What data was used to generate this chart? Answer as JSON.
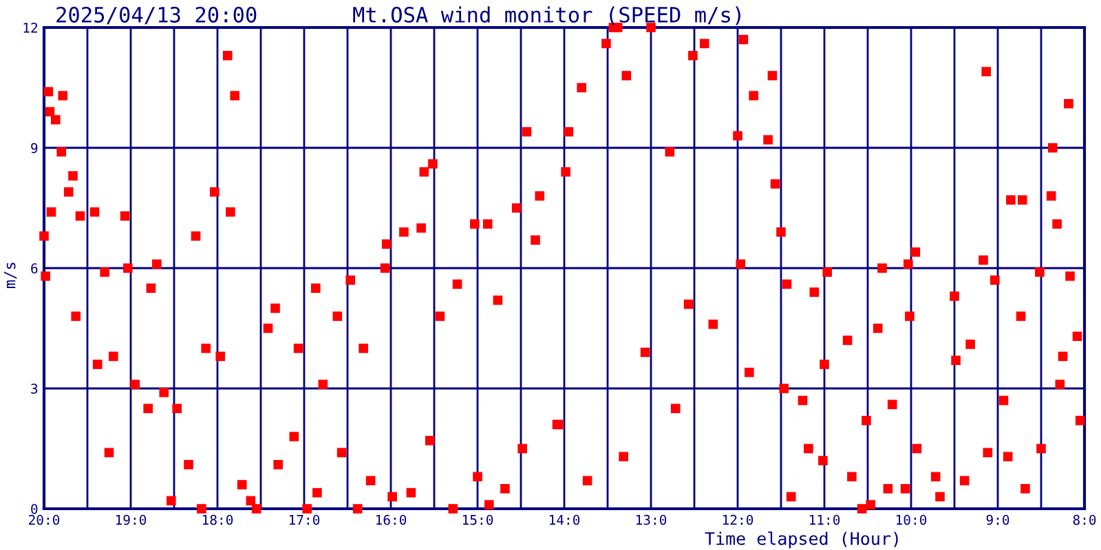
{
  "chart_data": {
    "type": "scatter",
    "title": "Mt.OSA wind monitor (SPEED m/s)",
    "subtitle": "2025/04/13 20:00",
    "xlabel": "Time elapsed (Hour)",
    "ylabel": "m/s",
    "xlim": [
      "2025-04-13T20:00",
      "2025-04-13T08:00"
    ],
    "ylim": [
      0,
      12
    ],
    "xticks": [
      {
        "value": "2025-04-13T20:00",
        "label": "20:0"
      },
      {
        "value": "2025-04-13T19:30",
        "label": null
      },
      {
        "value": "2025-04-13T19:00",
        "label": "19:0"
      },
      {
        "value": "2025-04-13T18:30",
        "label": null
      },
      {
        "value": "2025-04-13T18:00",
        "label": "18:0"
      },
      {
        "value": "2025-04-13T17:30",
        "label": null
      },
      {
        "value": "2025-04-13T17:00",
        "label": "17:0"
      },
      {
        "value": "2025-04-13T16:30",
        "label": null
      },
      {
        "value": "2025-04-13T16:00",
        "label": "16:0"
      },
      {
        "value": "2025-04-13T15:30",
        "label": null
      },
      {
        "value": "2025-04-13T15:00",
        "label": "15:0"
      },
      {
        "value": "2025-04-13T14:30",
        "label": null
      },
      {
        "value": "2025-04-13T14:00",
        "label": "14:0"
      },
      {
        "value": "2025-04-13T13:30",
        "label": null
      },
      {
        "value": "2025-04-13T13:00",
        "label": "13:0"
      },
      {
        "value": "2025-04-13T12:30",
        "label": null
      },
      {
        "value": "2025-04-13T12:00",
        "label": "12:0"
      },
      {
        "value": "2025-04-13T11:30",
        "label": null
      },
      {
        "value": "2025-04-13T11:00",
        "label": "11:0"
      },
      {
        "value": "2025-04-13T10:30",
        "label": null
      },
      {
        "value": "2025-04-13T10:00",
        "label": "10:0"
      },
      {
        "value": "2025-04-13T09:30",
        "label": null
      },
      {
        "value": "2025-04-13T09:00",
        "label": "9:0"
      },
      {
        "value": "2025-04-13T08:30",
        "label": null
      },
      {
        "value": "2025-04-13T08:00",
        "label": "8:0"
      }
    ],
    "yticks": [
      0,
      3,
      6,
      9,
      12
    ],
    "grid": true,
    "marker": "square",
    "series": [
      {
        "color": "#ff0000",
        "x": [
          "2025-04-13T19:57",
          "2025-04-13T19:56",
          "2025-04-13T19:52",
          "2025-04-13T19:47",
          "2025-04-13T19:48",
          "2025-04-13T19:40",
          "2025-04-13T20:00",
          "2025-04-13T19:59",
          "2025-04-13T19:55",
          "2025-04-13T19:43",
          "2025-04-13T19:38",
          "2025-04-13T19:35",
          "2025-04-13T19:25",
          "2025-04-13T19:15",
          "2025-04-13T19:23",
          "2025-04-13T19:18",
          "2025-04-13T19:12",
          "2025-04-13T19:04",
          "2025-04-13T19:02",
          "2025-04-13T18:57",
          "2025-04-13T18:48",
          "2025-04-13T18:42",
          "2025-04-13T18:46",
          "2025-04-13T18:32",
          "2025-04-13T18:37",
          "2025-04-13T18:28",
          "2025-04-13T18:20",
          "2025-04-13T18:15",
          "2025-04-13T18:11",
          "2025-04-13T18:08",
          "2025-04-13T18:02",
          "2025-04-13T17:53",
          "2025-04-13T17:48",
          "2025-04-13T17:51",
          "2025-04-13T17:58",
          "2025-04-13T17:43",
          "2025-04-13T17:37",
          "2025-04-13T17:33",
          "2025-04-13T17:20",
          "2025-04-13T17:25",
          "2025-04-13T17:18",
          "2025-04-13T17:07",
          "2025-04-13T17:04",
          "2025-04-13T16:58",
          "2025-04-13T16:52",
          "2025-04-13T16:51",
          "2025-04-13T16:47",
          "2025-04-13T16:37",
          "2025-04-13T16:34",
          "2025-04-13T16:28",
          "2025-04-13T16:23",
          "2025-04-13T16:19",
          "2025-04-13T16:14",
          "2025-04-13T16:04",
          "2025-04-13T16:03",
          "2025-04-13T15:59",
          "2025-04-13T15:51",
          "2025-04-13T15:46",
          "2025-04-13T15:39",
          "2025-04-13T15:37",
          "2025-04-13T15:31",
          "2025-04-13T15:33",
          "2025-04-13T15:26",
          "2025-04-13T15:17",
          "2025-04-13T15:14",
          "2025-04-13T15:02",
          "2025-04-13T14:53",
          "2025-04-13T15:00",
          "2025-04-13T14:52",
          "2025-04-13T14:46",
          "2025-04-13T14:41",
          "2025-04-13T14:33",
          "2025-04-13T14:26",
          "2025-04-13T14:29",
          "2025-04-13T14:17",
          "2025-04-13T14:20",
          "2025-04-13T14:05",
          "2025-04-13T13:57",
          "2025-04-13T13:59",
          "2025-04-13T13:48",
          "2025-04-13T13:26",
          "2025-04-13T13:23",
          "2025-04-13T13:31",
          "2025-04-13T13:17",
          "2025-04-13T13:44",
          "2025-04-13T14:04",
          "2025-04-13T13:19",
          "2025-04-13T13:00",
          "2025-04-13T13:04",
          "2025-04-13T12:43",
          "2025-04-13T12:47",
          "2025-04-13T12:31",
          "2025-04-13T12:23",
          "2025-04-13T12:34",
          "2025-04-13T12:17",
          "2025-04-13T11:56",
          "2025-04-13T11:49",
          "2025-04-13T12:00",
          "2025-04-13T11:58",
          "2025-04-13T11:52",
          "2025-04-13T11:36",
          "2025-04-13T11:39",
          "2025-04-13T11:34",
          "2025-04-13T11:30",
          "2025-04-13T11:26",
          "2025-04-13T11:23",
          "2025-04-13T11:28",
          "2025-04-13T11:15",
          "2025-04-13T11:11",
          "2025-04-13T11:07",
          "2025-04-13T10:58",
          "2025-04-13T11:00",
          "2025-04-13T11:01",
          "2025-04-13T10:44",
          "2025-04-13T10:41",
          "2025-04-13T10:34",
          "2025-04-13T10:28",
          "2025-04-13T10:31",
          "2025-04-13T10:20",
          "2025-04-13T10:23",
          "2025-04-13T10:16",
          "2025-04-13T10:13",
          "2025-04-13T10:04",
          "2025-04-13T10:02",
          "2025-04-13T09:57",
          "2025-04-13T10:01",
          "2025-04-13T09:56",
          "2025-04-13T09:40",
          "2025-04-13T09:43",
          "2025-04-13T09:30",
          "2025-04-13T09:29",
          "2025-04-13T09:23",
          "2025-04-13T09:19",
          "2025-04-13T09:10",
          "2025-04-13T09:08",
          "2025-04-13T09:07",
          "2025-04-13T09:02",
          "2025-04-13T08:56",
          "2025-04-13T08:53",
          "2025-04-13T08:51",
          "2025-04-13T08:43",
          "2025-04-13T08:41",
          "2025-04-13T08:44",
          "2025-04-13T08:31",
          "2025-04-13T08:30",
          "2025-04-13T08:23",
          "2025-04-13T08:22",
          "2025-04-13T08:19",
          "2025-04-13T08:11",
          "2025-04-13T08:10",
          "2025-04-13T08:03",
          "2025-04-13T08:05",
          "2025-04-13T08:17",
          "2025-04-13T08:15"
        ],
        "values": [
          10.4,
          9.9,
          9.7,
          10.3,
          8.9,
          8.3,
          6.8,
          5.8,
          7.4,
          7.9,
          4.8,
          7.3,
          7.4,
          1.4,
          3.6,
          5.9,
          3.8,
          7.3,
          6.0,
          3.1,
          2.5,
          6.1,
          5.5,
          0.2,
          2.9,
          2.5,
          1.1,
          6.8,
          0.0,
          4.0,
          7.9,
          11.3,
          10.3,
          7.4,
          3.8,
          0.6,
          0.2,
          0.0,
          5.0,
          4.5,
          1.1,
          1.8,
          4.0,
          0.0,
          5.5,
          0.4,
          3.1,
          4.8,
          1.4,
          5.7,
          0.0,
          4.0,
          0.7,
          6.0,
          6.6,
          0.3,
          6.9,
          0.4,
          7.0,
          8.4,
          8.6,
          1.7,
          4.8,
          0.0,
          5.6,
          7.1,
          7.1,
          0.8,
          0.1,
          5.2,
          0.5,
          7.5,
          9.4,
          1.5,
          7.8,
          6.7,
          2.1,
          9.4,
          8.4,
          10.5,
          12.0,
          12.0,
          11.6,
          10.8,
          0.7,
          2.1,
          1.3,
          12.0,
          3.9,
          2.5,
          8.9,
          11.3,
          11.6,
          5.1,
          4.6,
          11.7,
          10.3,
          9.3,
          6.1,
          3.4,
          10.8,
          9.2,
          8.1,
          6.9,
          5.6,
          0.3,
          3.0,
          2.7,
          1.5,
          5.4,
          5.9,
          3.6,
          1.2,
          4.2,
          0.8,
          0.0,
          0.1,
          2.2,
          6.0,
          4.5,
          0.5,
          2.6,
          0.5,
          6.1,
          6.4,
          4.8,
          1.5,
          0.3,
          0.8,
          5.3,
          3.7,
          0.7,
          4.1,
          6.2,
          10.9,
          1.4,
          5.7,
          2.7,
          1.3,
          7.7,
          7.7,
          0.5,
          4.8,
          5.9,
          1.5,
          7.8,
          9.0,
          7.1,
          10.1,
          5.8,
          2.2,
          4.3,
          3.1,
          3.8
        ]
      }
    ]
  }
}
